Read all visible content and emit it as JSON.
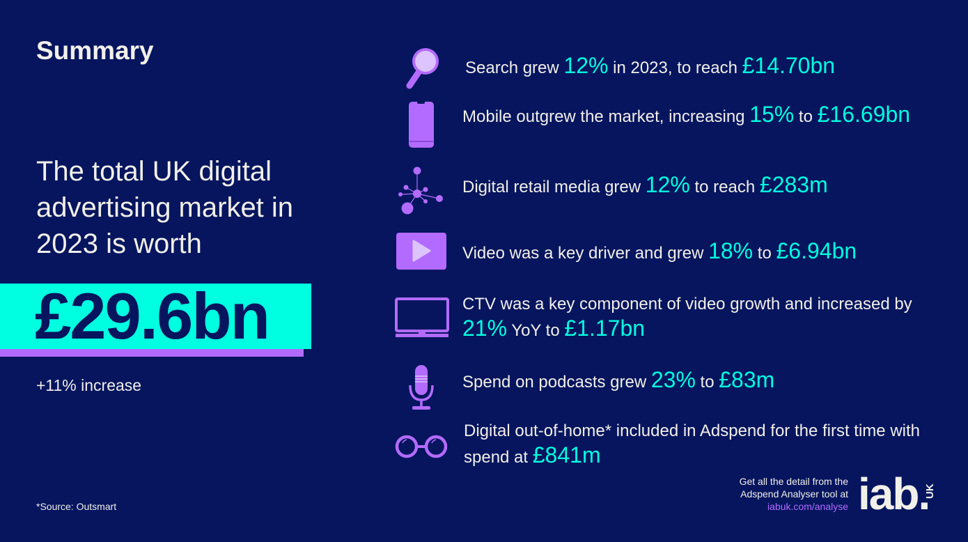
{
  "title": "Summary",
  "lead": "The total UK digital advertising market in 2023 is worth",
  "headline_value": "£29.6bn",
  "increase": "+11% increase",
  "source": "*Source: Outsmart",
  "colors": {
    "background": "#06155e",
    "accent": "#00ffe0",
    "purple": "#b36bff",
    "text": "#f1efe9"
  },
  "items": [
    {
      "icon": "magnifier-icon",
      "parts": [
        {
          "t": "Search grew ",
          "h": false
        },
        {
          "t": "12%",
          "h": true
        },
        {
          "t": " in 2023, to reach ",
          "h": false
        },
        {
          "t": "£14.70bn",
          "h": true
        }
      ]
    },
    {
      "icon": "mobile-phone-icon",
      "parts": [
        {
          "t": "Mobile outgrew the market, increasing ",
          "h": false
        },
        {
          "t": "15%",
          "h": true
        },
        {
          "t": " to ",
          "h": false
        },
        {
          "t": "£16.69bn",
          "h": true
        }
      ]
    },
    {
      "icon": "network-icon",
      "parts": [
        {
          "t": "Digital retail media grew ",
          "h": false
        },
        {
          "t": "12%",
          "h": true
        },
        {
          "t": " to reach ",
          "h": false
        },
        {
          "t": "£283m",
          "h": true
        }
      ]
    },
    {
      "icon": "video-play-icon",
      "parts": [
        {
          "t": "Video was a key driver and grew ",
          "h": false
        },
        {
          "t": "18%",
          "h": true
        },
        {
          "t": " to ",
          "h": false
        },
        {
          "t": "£6.94bn",
          "h": true
        }
      ]
    },
    {
      "icon": "tv-icon",
      "parts": [
        {
          "t": "CTV was a key component of video growth and increased by ",
          "h": false
        },
        {
          "t": "21%",
          "h": true
        },
        {
          "t": " YoY to ",
          "h": false
        },
        {
          "t": "£1.17bn",
          "h": true
        }
      ]
    },
    {
      "icon": "microphone-icon",
      "parts": [
        {
          "t": "Spend on podcasts grew ",
          "h": false
        },
        {
          "t": "23%",
          "h": true
        },
        {
          "t": " to ",
          "h": false
        },
        {
          "t": "£83m",
          "h": true
        }
      ]
    },
    {
      "icon": "glasses-icon",
      "parts": [
        {
          "t": "Digital out-of-home* included in Adspend for the first time with spend at ",
          "h": false
        },
        {
          "t": "£841m",
          "h": true
        }
      ]
    }
  ],
  "cta": {
    "line1": "Get all the detail from the",
    "line2": "Adspend Analyser tool at",
    "link": "iabuk.com/analyse"
  },
  "logo": {
    "text": "iab.",
    "sub": "UK"
  }
}
